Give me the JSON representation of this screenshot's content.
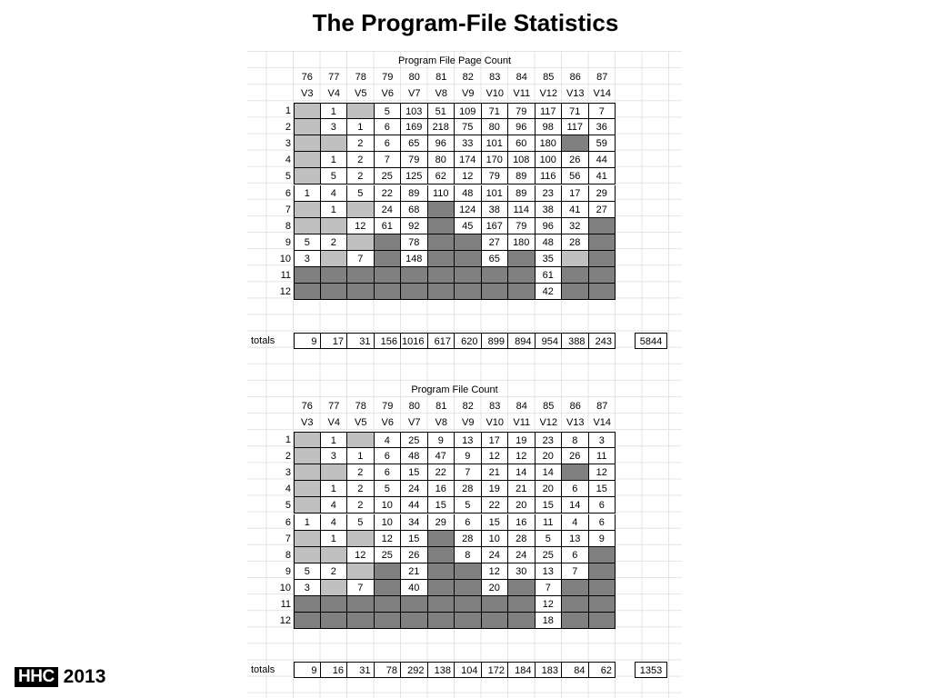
{
  "page": {
    "title": "The Program-File Statistics",
    "logo_text": "HHC",
    "logo_year": "2013"
  },
  "tables": [
    {
      "name": "page-count",
      "title": "Program File Page Count",
      "years": [
        "76",
        "77",
        "78",
        "79",
        "80",
        "81",
        "82",
        "83",
        "84",
        "85",
        "86",
        "87"
      ],
      "versions": [
        "V3",
        "V4",
        "V5",
        "V6",
        "V7",
        "V8",
        "V9",
        "V10",
        "V11",
        "V12",
        "V13",
        "V14"
      ],
      "row_labels": [
        "1",
        "2",
        "3",
        "4",
        "5",
        "6",
        "7",
        "8",
        "9",
        "10",
        "11",
        "12"
      ],
      "cells": [
        [
          "L",
          "1",
          "L",
          "5",
          "103",
          "51",
          "109",
          "71",
          "79",
          "117",
          "71",
          "7"
        ],
        [
          "L",
          "3",
          "1",
          "6",
          "169",
          "218",
          "75",
          "80",
          "96",
          "98",
          "117",
          "36"
        ],
        [
          "L",
          "L",
          "2",
          "6",
          "65",
          "96",
          "33",
          "101",
          "60",
          "180",
          "D",
          "59"
        ],
        [
          "L",
          "1",
          "2",
          "7",
          "79",
          "80",
          "174",
          "170",
          "108",
          "100",
          "26",
          "44"
        ],
        [
          "L",
          "5",
          "2",
          "25",
          "125",
          "62",
          "12",
          "79",
          "89",
          "116",
          "56",
          "41"
        ],
        [
          "1",
          "4",
          "5",
          "22",
          "89",
          "110",
          "48",
          "101",
          "89",
          "23",
          "17",
          "29"
        ],
        [
          "L",
          "1",
          "L",
          "24",
          "68",
          "D",
          "124",
          "38",
          "114",
          "38",
          "41",
          "27"
        ],
        [
          "L",
          "L",
          "12",
          "61",
          "92",
          "D",
          "45",
          "167",
          "79",
          "96",
          "32",
          "D"
        ],
        [
          "5",
          "2",
          "L",
          "D",
          "78",
          "D",
          "D",
          "27",
          "180",
          "48",
          "28",
          "D"
        ],
        [
          "3",
          "L",
          "7",
          "D",
          "148",
          "D",
          "D",
          "65",
          "D",
          "35",
          "L",
          "D"
        ],
        [
          "D",
          "D",
          "D",
          "D",
          "D",
          "D",
          "D",
          "D",
          "D",
          "61",
          "D",
          "D"
        ],
        [
          "D",
          "D",
          "D",
          "D",
          "D",
          "D",
          "D",
          "D",
          "D",
          "42",
          "D",
          "D"
        ]
      ],
      "totals_label": "totals",
      "totals": [
        "9",
        "17",
        "31",
        "156",
        "1016",
        "617",
        "620",
        "899",
        "894",
        "954",
        "388",
        "243"
      ],
      "grand_total": "5844"
    },
    {
      "name": "file-count",
      "title": "Program File Count",
      "years": [
        "76",
        "77",
        "78",
        "79",
        "80",
        "81",
        "82",
        "83",
        "84",
        "85",
        "86",
        "87"
      ],
      "versions": [
        "V3",
        "V4",
        "V5",
        "V6",
        "V7",
        "V8",
        "V9",
        "V10",
        "V11",
        "V12",
        "V13",
        "V14"
      ],
      "row_labels": [
        "1",
        "2",
        "3",
        "4",
        "5",
        "6",
        "7",
        "8",
        "9",
        "10",
        "11",
        "12"
      ],
      "cells": [
        [
          "L",
          "1",
          "L",
          "4",
          "25",
          "9",
          "13",
          "17",
          "19",
          "23",
          "8",
          "3"
        ],
        [
          "L",
          "3",
          "1",
          "6",
          "48",
          "47",
          "9",
          "12",
          "12",
          "20",
          "26",
          "11"
        ],
        [
          "L",
          "L",
          "2",
          "6",
          "15",
          "22",
          "7",
          "21",
          "14",
          "14",
          "D",
          "12"
        ],
        [
          "L",
          "1",
          "2",
          "5",
          "24",
          "16",
          "28",
          "19",
          "21",
          "20",
          "6",
          "15"
        ],
        [
          "L",
          "4",
          "2",
          "10",
          "44",
          "15",
          "5",
          "22",
          "20",
          "15",
          "14",
          "6"
        ],
        [
          "1",
          "4",
          "5",
          "10",
          "34",
          "29",
          "6",
          "15",
          "16",
          "11",
          "4",
          "6"
        ],
        [
          "L",
          "1",
          "L",
          "12",
          "15",
          "D",
          "28",
          "10",
          "28",
          "5",
          "13",
          "9"
        ],
        [
          "L",
          "L",
          "12",
          "25",
          "26",
          "D",
          "8",
          "24",
          "24",
          "25",
          "6",
          "D"
        ],
        [
          "5",
          "2",
          "L",
          "D",
          "21",
          "D",
          "D",
          "12",
          "30",
          "13",
          "7",
          "D"
        ],
        [
          "3",
          "L",
          "7",
          "D",
          "40",
          "D",
          "D",
          "20",
          "D",
          "7",
          "D",
          "D"
        ],
        [
          "D",
          "D",
          "D",
          "D",
          "D",
          "D",
          "D",
          "D",
          "D",
          "12",
          "D",
          "D"
        ],
        [
          "D",
          "D",
          "D",
          "D",
          "D",
          "D",
          "D",
          "D",
          "D",
          "18",
          "D",
          "D"
        ]
      ],
      "totals_label": "totals",
      "totals": [
        "9",
        "16",
        "31",
        "78",
        "292",
        "138",
        "104",
        "172",
        "184",
        "183",
        "84",
        "62"
      ],
      "grand_total": "1353"
    }
  ]
}
